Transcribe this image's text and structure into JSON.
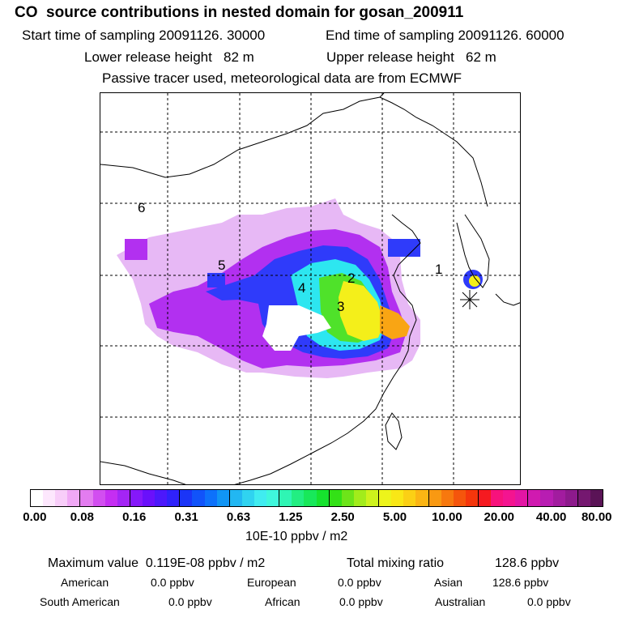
{
  "header": {
    "title": "CO  source contributions in nested domain for gosan_200911",
    "start_time": "Start time of sampling 20091126. 30000",
    "end_time": "End time of sampling 20091126. 60000",
    "lower_height": "Lower release height   82 m",
    "upper_height": "Upper release height   62 m",
    "tracer_note": "Passive tracer used, meteorological data are from ECMWF"
  },
  "map": {
    "region_labels": [
      "1",
      "2",
      "3",
      "4",
      "5",
      "6"
    ],
    "receptor_icon": "asterisk-receptor-marker",
    "peak_colors": [
      "#ff0000",
      "#ffa500",
      "#ffff00",
      "#00ff00",
      "#00ffff",
      "#0000ff",
      "#a000ff",
      "#ff00ff"
    ]
  },
  "colorbar": {
    "ticks": [
      "0.00",
      "0.08",
      "0.16",
      "0.31",
      "0.63",
      "1.25",
      "2.50",
      "5.00",
      "10.00",
      "20.00",
      "40.00",
      "80.00"
    ],
    "colors": [
      "#ffffff",
      "#fde7fd",
      "#f8cdf9",
      "#f0a8f5",
      "#e37cf0",
      "#d24ef0",
      "#c52ef2",
      "#a425f5",
      "#8518fa",
      "#6a10fb",
      "#4c18fb",
      "#2f22fb",
      "#1b35f7",
      "#1153fa",
      "#0d71fb",
      "#1095f5",
      "#22b7f2",
      "#30d3f0",
      "#40ecf0",
      "#3ff7dc",
      "#2ff5b4",
      "#22ee82",
      "#18e85a",
      "#16e22e",
      "#33e116",
      "#6de419",
      "#a2ec1b",
      "#cdf21c",
      "#edf41b",
      "#f9e716",
      "#fbd015",
      "#fbb514",
      "#f99912",
      "#f7780e",
      "#f5550c",
      "#f5360c",
      "#f51a20",
      "#f7127c",
      "#f41490",
      "#e315a4",
      "#d01ab0",
      "#b81db2",
      "#a21c9f",
      "#8d1a8c",
      "#751870",
      "#5a1356"
    ],
    "unit": "10E-10 ppbv / m2"
  },
  "summary": {
    "max_label": "Maximum value  0.119E-08 ppbv / m2",
    "total_label": "Total mixing ratio",
    "total_value": "128.6 ppbv",
    "sources": [
      {
        "name": "American",
        "value": "0.0 ppbv"
      },
      {
        "name": "European",
        "value": "0.0 ppbv"
      },
      {
        "name": "Asian",
        "value": "128.6 ppbv"
      },
      {
        "name": "South American",
        "value": "0.0 ppbv"
      },
      {
        "name": "African",
        "value": "0.0 ppbv"
      },
      {
        "name": "Australian",
        "value": "0.0 ppbv"
      }
    ]
  }
}
